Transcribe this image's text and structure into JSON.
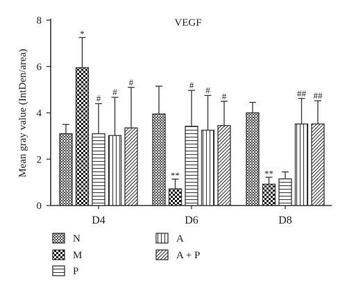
{
  "chart_data": {
    "type": "bar",
    "title": "VEGF",
    "xlabel": "",
    "ylabel": "Mean gray value (IntDen/area)",
    "ylim": [
      0,
      8
    ],
    "yticks": [
      "0",
      "2",
      "4",
      "6",
      "8"
    ],
    "categories": [
      "D4",
      "D6",
      "D8"
    ],
    "legend_placement": "bottom",
    "series": [
      {
        "name": "N",
        "pattern": "crosshatch",
        "values": [
          3.1,
          3.95,
          4.0
        ],
        "errors": [
          0.4,
          1.2,
          0.45
        ],
        "annotations": [
          "",
          "",
          ""
        ]
      },
      {
        "name": "M",
        "pattern": "checker",
        "values": [
          5.95,
          0.72,
          0.92
        ],
        "errors": [
          1.3,
          0.42,
          0.3
        ],
        "annotations": [
          "*",
          "**",
          "**"
        ]
      },
      {
        "name": "P",
        "pattern": "horizontal",
        "values": [
          3.1,
          3.42,
          1.15
        ],
        "errors": [
          1.3,
          1.55,
          0.3
        ],
        "annotations": [
          "#",
          "#",
          ""
        ]
      },
      {
        "name": "A",
        "pattern": "vertical",
        "values": [
          3.02,
          3.25,
          3.52
        ],
        "errors": [
          1.65,
          1.5,
          1.1
        ],
        "annotations": [
          "#",
          "#",
          "##"
        ]
      },
      {
        "name": "A + P",
        "pattern": "diagonal",
        "values": [
          3.35,
          3.45,
          3.52
        ],
        "errors": [
          1.75,
          1.05,
          1.0
        ],
        "annotations": [
          "#",
          "#",
          "##"
        ]
      }
    ]
  }
}
